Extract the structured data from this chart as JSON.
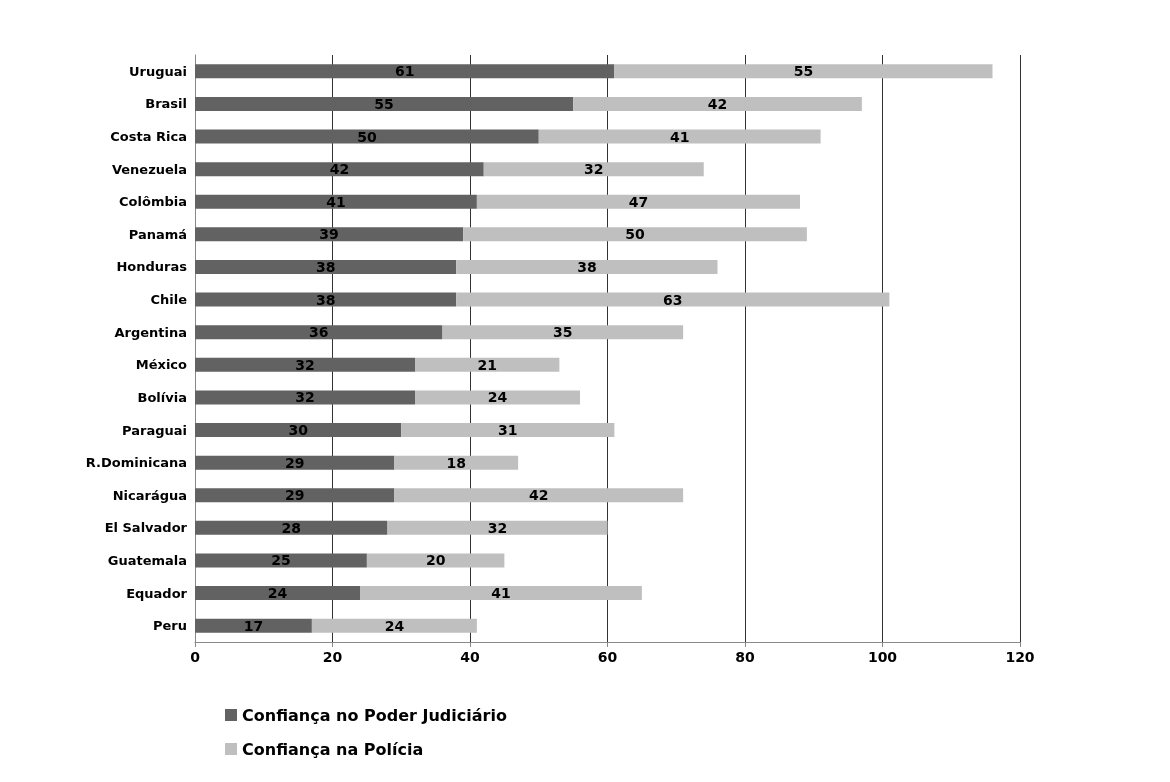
{
  "chart_data": {
    "type": "bar",
    "orientation": "horizontal",
    "stacked": true,
    "categories": [
      "Uruguai",
      "Brasil",
      "Costa Rica",
      "Venezuela",
      "Colômbia",
      "Panamá",
      "Honduras",
      "Chile",
      "Argentina",
      "México",
      "Bolívia",
      "Paraguai",
      "R.Dominicana",
      "Nicarágua",
      "El Salvador",
      "Guatemala",
      "Equador",
      "Peru"
    ],
    "series": [
      {
        "name": "Confiança no Poder Judiciário",
        "color": "#626262",
        "values": [
          61,
          55,
          50,
          42,
          41,
          39,
          38,
          38,
          36,
          32,
          32,
          30,
          29,
          29,
          28,
          25,
          24,
          17
        ]
      },
      {
        "name": "Confiança na Polícia",
        "color": "#bfbfbf",
        "values": [
          55,
          42,
          41,
          32,
          47,
          50,
          38,
          63,
          35,
          21,
          24,
          31,
          18,
          42,
          32,
          20,
          41,
          24
        ]
      }
    ],
    "xlim": [
      0,
      120
    ],
    "xticks": [
      0,
      20,
      40,
      60,
      80,
      100,
      120
    ],
    "grid": "x",
    "legend": "bottom left",
    "data_labels": true
  }
}
